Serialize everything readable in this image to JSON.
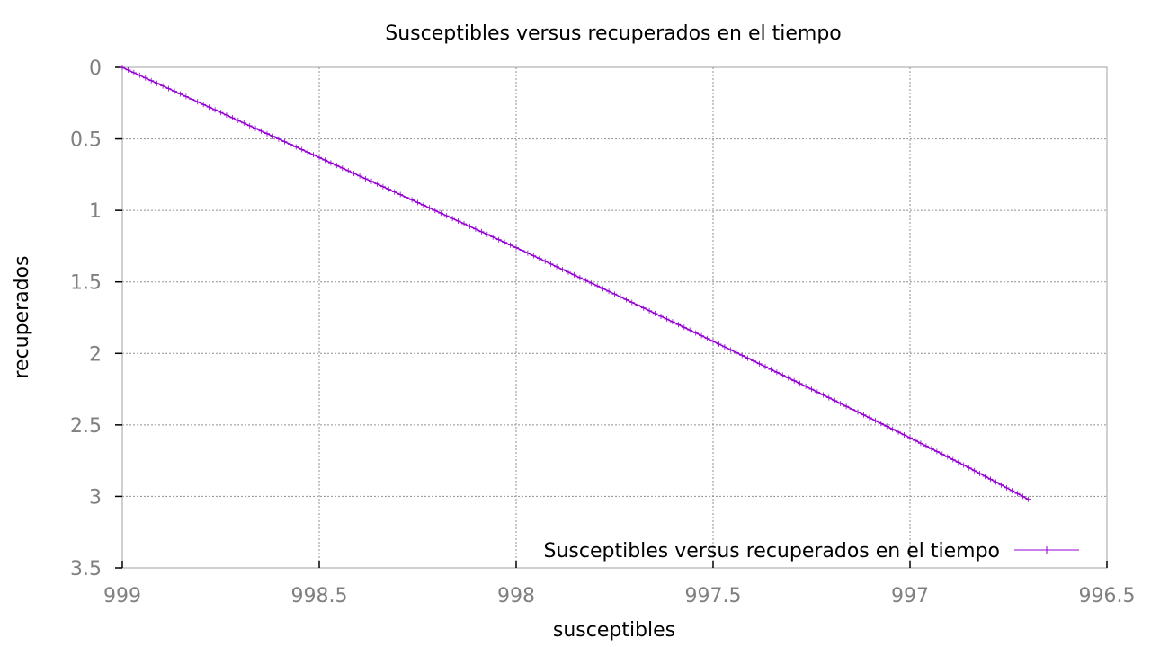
{
  "chart_data": {
    "type": "line",
    "title": "Susceptibles versus recuperados en el tiempo",
    "xlabel": "susceptibles",
    "ylabel": "recuperados",
    "xlim": [
      999,
      996.5
    ],
    "ylim": [
      3.5,
      0
    ],
    "x_reversed": true,
    "y_reversed": true,
    "x_ticks": [
      "999",
      "998.5",
      "998",
      "997.5",
      "997",
      "996.5"
    ],
    "y_ticks": [
      "0",
      "0.5",
      "1",
      "1.5",
      "2",
      "2.5",
      "3",
      "3.5"
    ],
    "grid": true,
    "legend_position": "bottom-right",
    "series": [
      {
        "name": "Susceptibles versus recuperados en el tiempo",
        "color": "#9400d3",
        "marker": "plus",
        "x": [
          999.0,
          998.75,
          998.5,
          998.25,
          998.0,
          997.75,
          997.5,
          997.25,
          997.0,
          996.85,
          996.7
        ],
        "y": [
          0.0,
          0.315,
          0.63,
          0.945,
          1.26,
          1.585,
          1.915,
          2.25,
          2.59,
          2.8,
          3.02
        ]
      }
    ]
  }
}
